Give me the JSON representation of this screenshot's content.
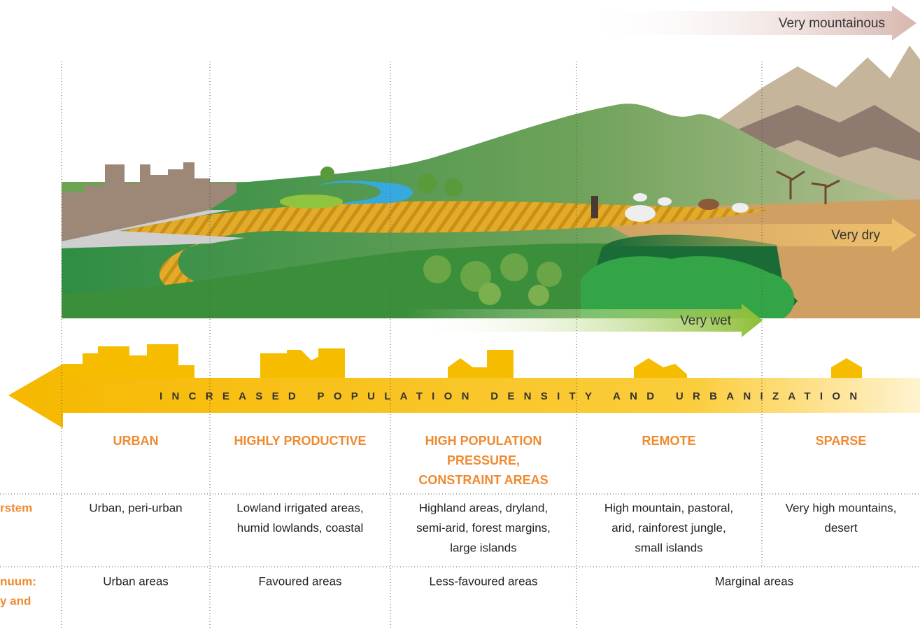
{
  "arrows": {
    "mountainous": "Very mountainous",
    "dry": "Very dry",
    "wet": "Very wet",
    "population": "INCREASED POPULATION DENSITY AND URBANIZATION"
  },
  "columns": [
    {
      "header": [
        "URBAN"
      ],
      "system": [
        "Urban, peri-urban"
      ]
    },
    {
      "header": [
        "HIGHLY PRODUCTIVE"
      ],
      "system": [
        "Lowland irrigated areas,",
        "humid lowlands, coastal"
      ]
    },
    {
      "header": [
        "HIGH POPULATION",
        "PRESSURE,",
        "CONSTRAINT AREAS"
      ],
      "system": [
        "Highland areas, dryland,",
        "semi-arid, forest margins,",
        "large islands"
      ]
    },
    {
      "header": [
        "REMOTE"
      ],
      "system": [
        "High mountain, pastoral,",
        "arid, rainforest jungle,",
        "small islands"
      ]
    },
    {
      "header": [
        "SPARSE"
      ],
      "system": [
        "Very high mountains,",
        "desert"
      ]
    }
  ],
  "row_labels": {
    "system": [
      "rstem"
    ],
    "continuum": [
      "nuum:",
      "y and"
    ]
  },
  "continuum": [
    "Urban areas",
    "Favoured areas",
    "Less-favoured areas",
    "Marginal areas"
  ]
}
